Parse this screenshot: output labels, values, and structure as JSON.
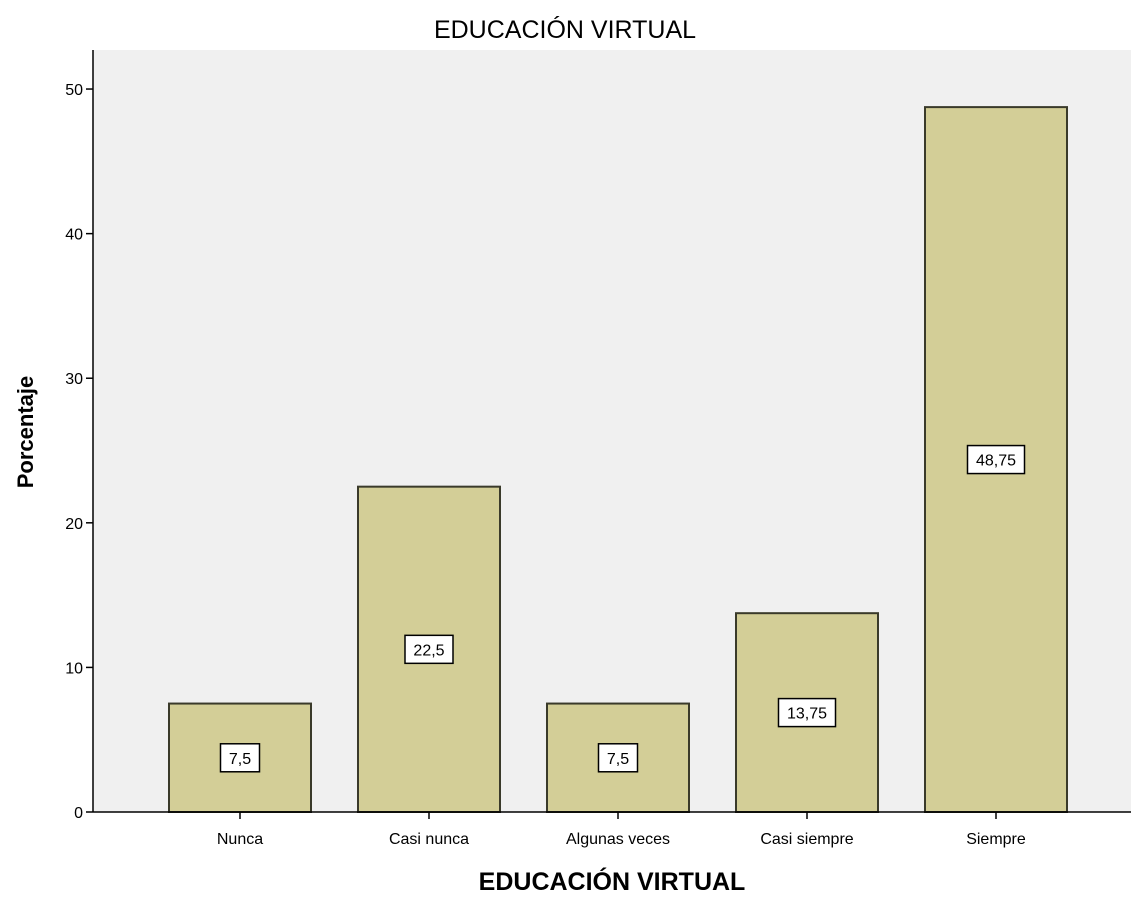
{
  "chart_data": {
    "type": "bar",
    "title": "EDUCACIÓN VIRTUAL",
    "xlabel": "EDUCACIÓN VIRTUAL",
    "ylabel": "Porcentaje",
    "categories": [
      "Nunca",
      "Casi nunca",
      "Algunas veces",
      "Casi siempre",
      "Siempre"
    ],
    "values": [
      7.5,
      22.5,
      7.5,
      13.75,
      48.75
    ],
    "data_labels": [
      "7,5",
      "22,5",
      "7,5",
      "13,75",
      "48,75"
    ],
    "ylim": [
      0,
      52.7
    ],
    "yticks": [
      0,
      10,
      20,
      30,
      40,
      50
    ],
    "ytick_labels": [
      "0",
      "10",
      "20",
      "30",
      "40",
      "50"
    ],
    "grid": false,
    "legend": "none",
    "colors": {
      "bar_fill": "#d3ce97",
      "bar_stroke": "#3a3a2a",
      "plot_background": "#f0f0f0",
      "axis": "#000000",
      "label_box": "#ffffff"
    }
  }
}
